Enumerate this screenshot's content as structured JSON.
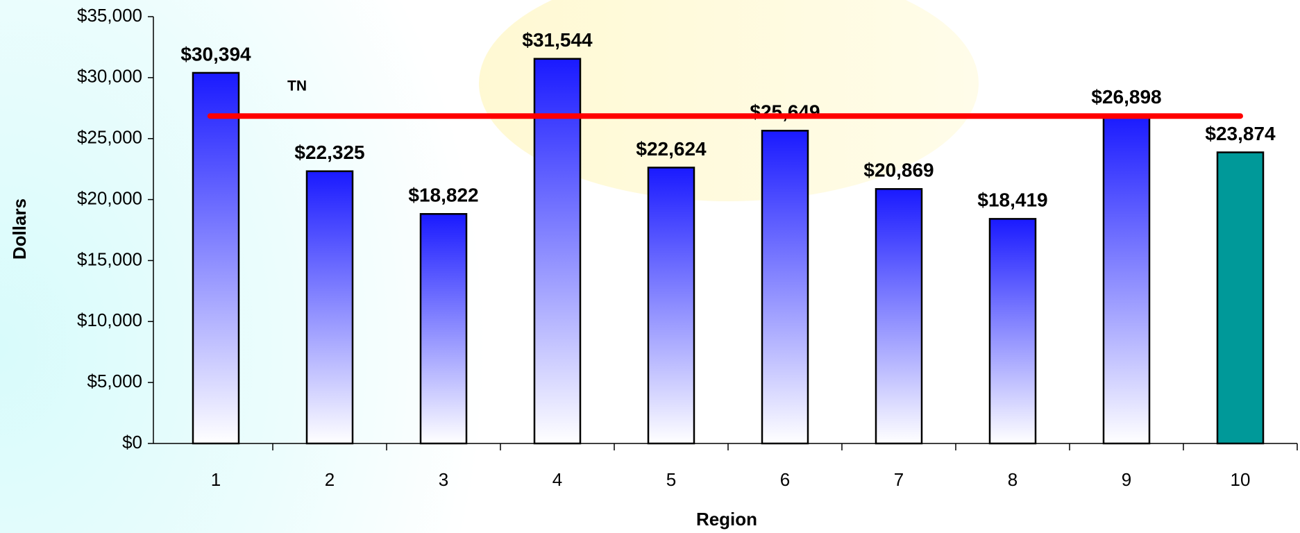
{
  "chart_data": {
    "type": "bar",
    "x_label": "Region",
    "y_label": "Dollars",
    "categories": [
      "1",
      "2",
      "3",
      "4",
      "5",
      "6",
      "7",
      "8",
      "9",
      "10"
    ],
    "values": [
      30394,
      22325,
      18822,
      31544,
      22624,
      25649,
      20869,
      18419,
      26898,
      23874
    ],
    "value_labels": [
      "$30,394",
      "$22,325",
      "$18,822",
      "$31,544",
      "$22,624",
      "$25,649",
      "$20,869",
      "$18,419",
      "$26,898",
      "$23,874"
    ],
    "colors": [
      "#1a1aff",
      "#1a1aff",
      "#1a1aff",
      "#1a1aff",
      "#1a1aff",
      "#1a1aff",
      "#1a1aff",
      "#1a1aff",
      "#1a1aff",
      "#009999"
    ],
    "fill_styles": [
      "gradient",
      "gradient",
      "gradient",
      "gradient",
      "gradient",
      "gradient",
      "gradient",
      "gradient",
      "gradient",
      "solid"
    ],
    "reference_line": {
      "label": "TN",
      "value": 26850,
      "color": "#ff0000"
    },
    "ylim": [
      0,
      35000
    ],
    "yticks": [
      {
        "value": 0,
        "label": "$0"
      },
      {
        "value": 5000,
        "label": "$5,000"
      },
      {
        "value": 10000,
        "label": "$10,000"
      },
      {
        "value": 15000,
        "label": "$15,000"
      },
      {
        "value": 20000,
        "label": "$20,000"
      },
      {
        "value": 25000,
        "label": "$25,000"
      },
      {
        "value": 30000,
        "label": "$30,000"
      },
      {
        "value": 35000,
        "label": "$35,000"
      }
    ],
    "grid": false
  }
}
